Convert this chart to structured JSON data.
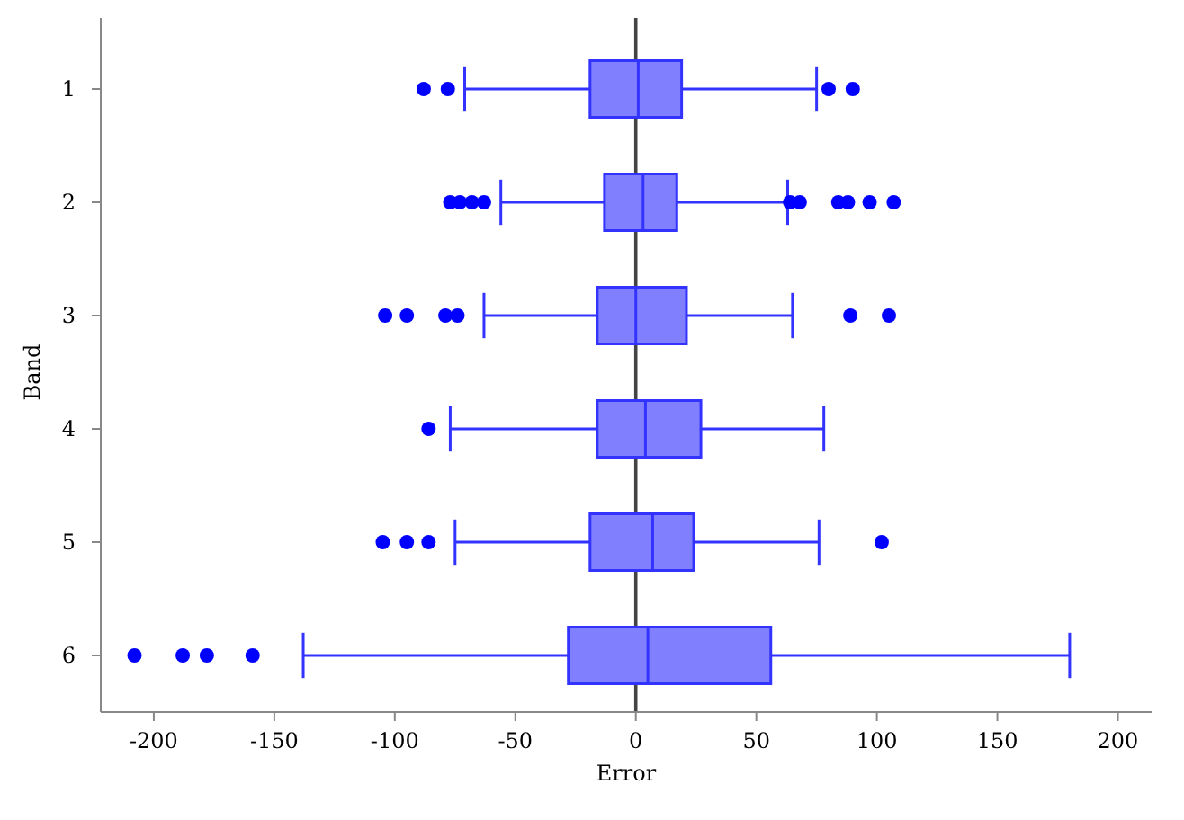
{
  "chart_data": {
    "type": "box",
    "orientation": "horizontal",
    "xlabel": "Error",
    "ylabel": "Band",
    "categories": [
      "1",
      "2",
      "3",
      "4",
      "5",
      "6"
    ],
    "color": "#8080ff",
    "xlim": [
      -222,
      214
    ],
    "xticks": [
      -200,
      -150,
      -100,
      -50,
      0,
      50,
      100,
      150,
      200
    ],
    "boxes": [
      {
        "low": -71,
        "q1": -19,
        "median": 1,
        "q3": 19,
        "high": 75,
        "outliers": [
          -88,
          -78,
          80,
          90
        ]
      },
      {
        "low": -56,
        "q1": -13,
        "median": 3,
        "q3": 17,
        "high": 63,
        "outliers": [
          -77,
          -73,
          -68,
          -63,
          64,
          68,
          84,
          88,
          97,
          107
        ]
      },
      {
        "low": -63,
        "q1": -16,
        "median": 0,
        "q3": 21,
        "high": 65,
        "outliers": [
          -104,
          -95,
          -79,
          -74,
          89,
          105
        ]
      },
      {
        "low": -77,
        "q1": -16,
        "median": 4,
        "q3": 27,
        "high": 78,
        "outliers": [
          -86
        ]
      },
      {
        "low": -75,
        "q1": -19,
        "median": 7,
        "q3": 24,
        "high": 76,
        "outliers": [
          -105,
          -95,
          -86,
          102
        ]
      },
      {
        "low": -138,
        "q1": -28,
        "median": 5,
        "q3": 56,
        "high": 180,
        "outliers": [
          -208,
          -188,
          -178,
          -159
        ]
      }
    ],
    "ref_lines": [
      {
        "axis": "x",
        "value": 0,
        "color": "#444444"
      }
    ]
  }
}
